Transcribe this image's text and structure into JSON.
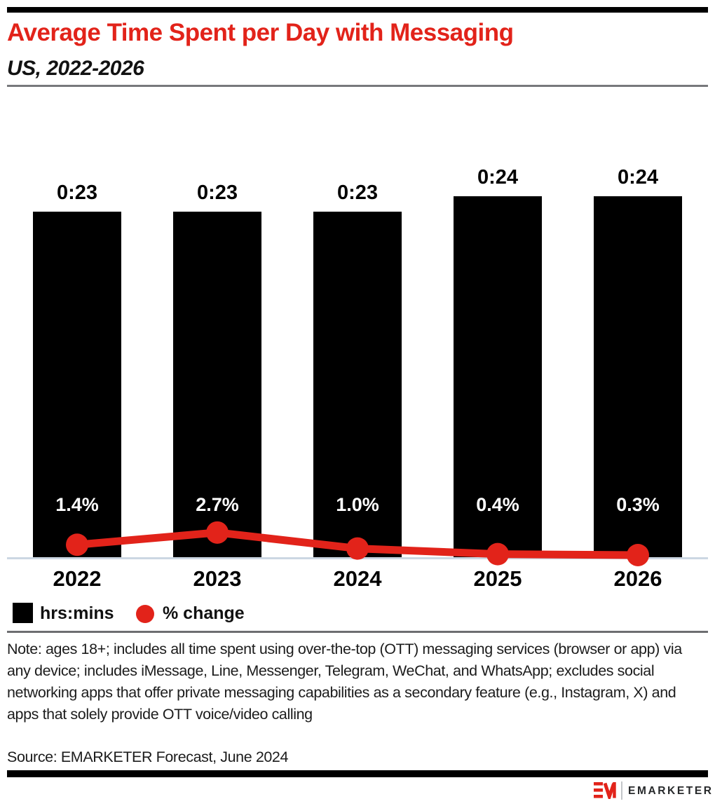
{
  "header": {
    "title": "Average Time Spent per Day with Messaging",
    "subtitle": "US, 2022-2026"
  },
  "chart_data": {
    "type": "bar",
    "subtype": "bar-line-combo",
    "title": "Average Time Spent per Day with Messaging",
    "subtitle": "US, 2022-2026",
    "categories": [
      "2022",
      "2023",
      "2024",
      "2025",
      "2026"
    ],
    "series": [
      {
        "name": "hrs:mins",
        "type": "bar",
        "unit": "minutes per day",
        "values_minutes": [
          23,
          23,
          23,
          24,
          24
        ],
        "labels": [
          "0:23",
          "0:23",
          "0:23",
          "0:24",
          "0:24"
        ],
        "color": "#000000"
      },
      {
        "name": "% change",
        "type": "line",
        "unit": "percent",
        "values_percent": [
          1.4,
          2.7,
          1.0,
          0.4,
          0.3
        ],
        "labels": [
          "1.4%",
          "2.7%",
          "1.0%",
          "0.4%",
          "0.3%"
        ],
        "color": "#e2231a"
      }
    ],
    "ylim_minutes": [
      0,
      29
    ],
    "grid": false,
    "y_axis_shown": false,
    "legend_position": "bottom-left"
  },
  "legend": {
    "items": [
      {
        "label": "hrs:mins",
        "swatch": "black-square",
        "color": "#000000"
      },
      {
        "label": "% change",
        "swatch": "red-circle",
        "color": "#e2231a"
      }
    ]
  },
  "footnote": {
    "note": "Note: ages 18+; includes all time spent using over-the-top (OTT) messaging services (browser or app) via any device; includes iMessage, Line, Messenger, Telegram, WeChat, and WhatsApp; excludes social networking apps that offer private messaging capabilities as a secondary feature (e.g., Instagram, X) and apps that solely provide OTT voice/video calling",
    "source": "Source: EMARKETER Forecast, June 2024"
  },
  "branding": {
    "logo_text": "EMARKETER",
    "logo_mark": "EM monogram",
    "logo_color": "#e2231a"
  },
  "colors": {
    "accent_red": "#e2231a",
    "bar_black": "#000000",
    "axis_line": "#ccd7e3",
    "divider_gray": "#6d6e71",
    "pct_label_white": "#ffffff"
  }
}
